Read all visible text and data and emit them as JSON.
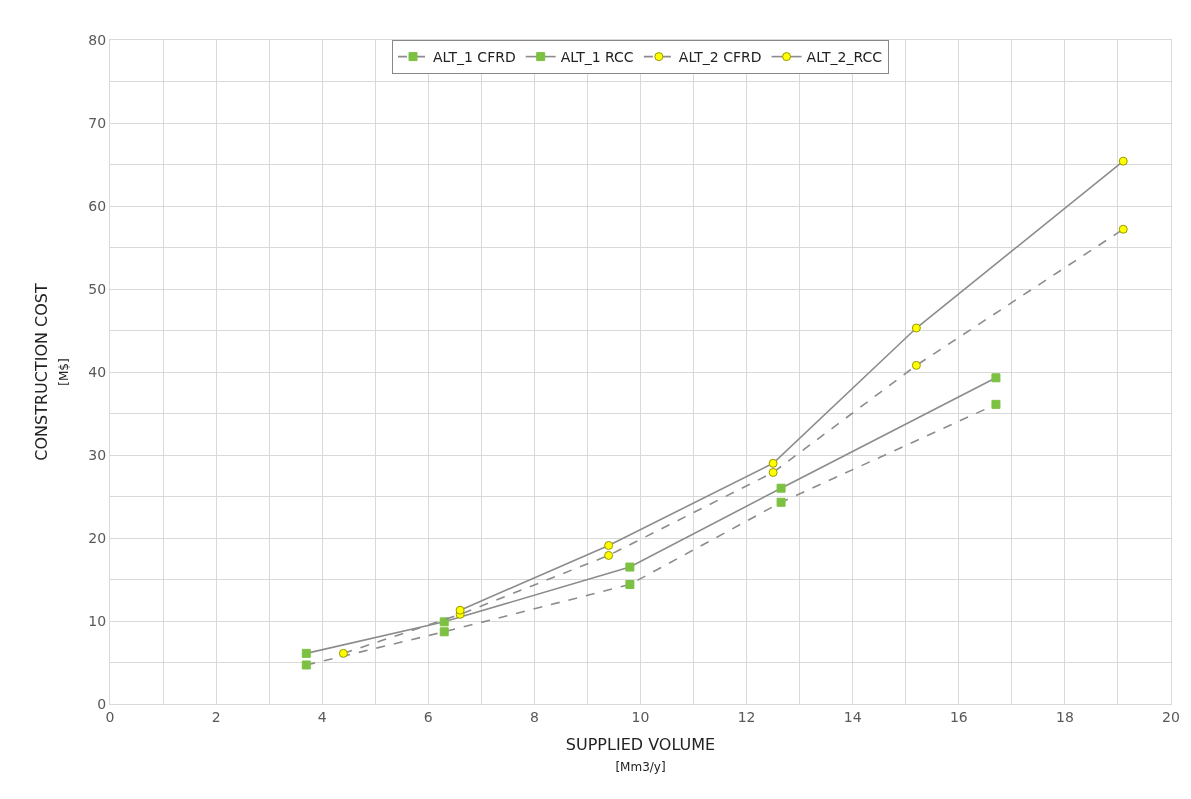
{
  "chart_data": {
    "type": "line",
    "xlabel": "SUPPLIED VOLUME\n[Mm3/y]",
    "ylabel": "CONSTRUCTION COST\n[M$]",
    "xlim": [
      0,
      20
    ],
    "xticks": [
      0,
      2,
      4,
      6,
      8,
      10,
      12,
      14,
      16,
      18,
      20
    ],
    "ylim": [
      0,
      80
    ],
    "yticks": [
      0,
      10,
      20,
      30,
      40,
      50,
      60,
      70,
      80
    ],
    "grid": true,
    "legend": "top",
    "series": [
      {
        "name": "ALT_1 CFRD",
        "color": "#7cc142",
        "marker": "square",
        "line_style": "dashed",
        "x": [
          3.7,
          6.3,
          9.8,
          12.65,
          16.7
        ],
        "values": [
          4.7,
          8.7,
          14.4,
          24.3,
          36.1
        ]
      },
      {
        "name": "ALT_1 RCC",
        "color": "#7cc142",
        "marker": "square",
        "line_style": "solid",
        "x": [
          3.7,
          6.3,
          9.8,
          12.65,
          16.7
        ],
        "values": [
          6.1,
          9.9,
          16.5,
          26.0,
          39.3
        ]
      },
      {
        "name": "ALT_2 CFRD",
        "color": "#ffff00",
        "marker": "circle",
        "line_style": "dashed",
        "x": [
          4.4,
          6.6,
          9.4,
          12.5,
          15.2,
          19.1
        ],
        "values": [
          6.1,
          10.8,
          17.9,
          27.9,
          40.8,
          57.2
        ]
      },
      {
        "name": "ALT_2_RCC",
        "color": "#ffff00",
        "marker": "circle",
        "line_style": "solid",
        "x": [
          6.6,
          9.4,
          12.5,
          15.2,
          19.1
        ],
        "values": [
          11.3,
          19.1,
          29.0,
          45.3,
          65.4
        ]
      }
    ]
  }
}
